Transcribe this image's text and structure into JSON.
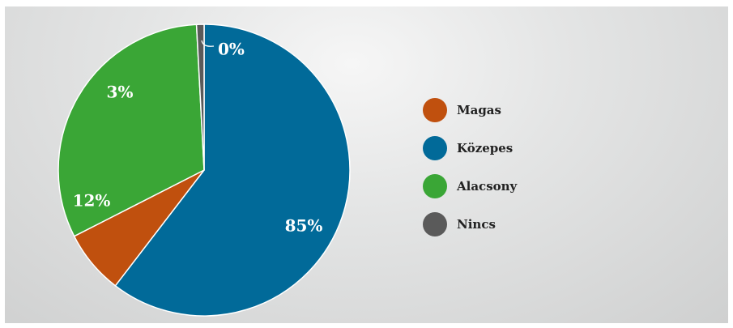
{
  "chart_data": {
    "type": "pie",
    "title": "",
    "slices": [
      {
        "name": "Magas",
        "value": 12,
        "label": "12%",
        "color": "#c0500e"
      },
      {
        "name": "Közepes",
        "value": 85,
        "label": "85%",
        "color": "#016a99"
      },
      {
        "name": "Alacsony",
        "value": 3,
        "label": "3%",
        "color": "#3aa636"
      },
      {
        "name": "Nincs",
        "value": 0,
        "label": "0%",
        "color": "#5a5a5a"
      }
    ],
    "legend_position": "right"
  }
}
